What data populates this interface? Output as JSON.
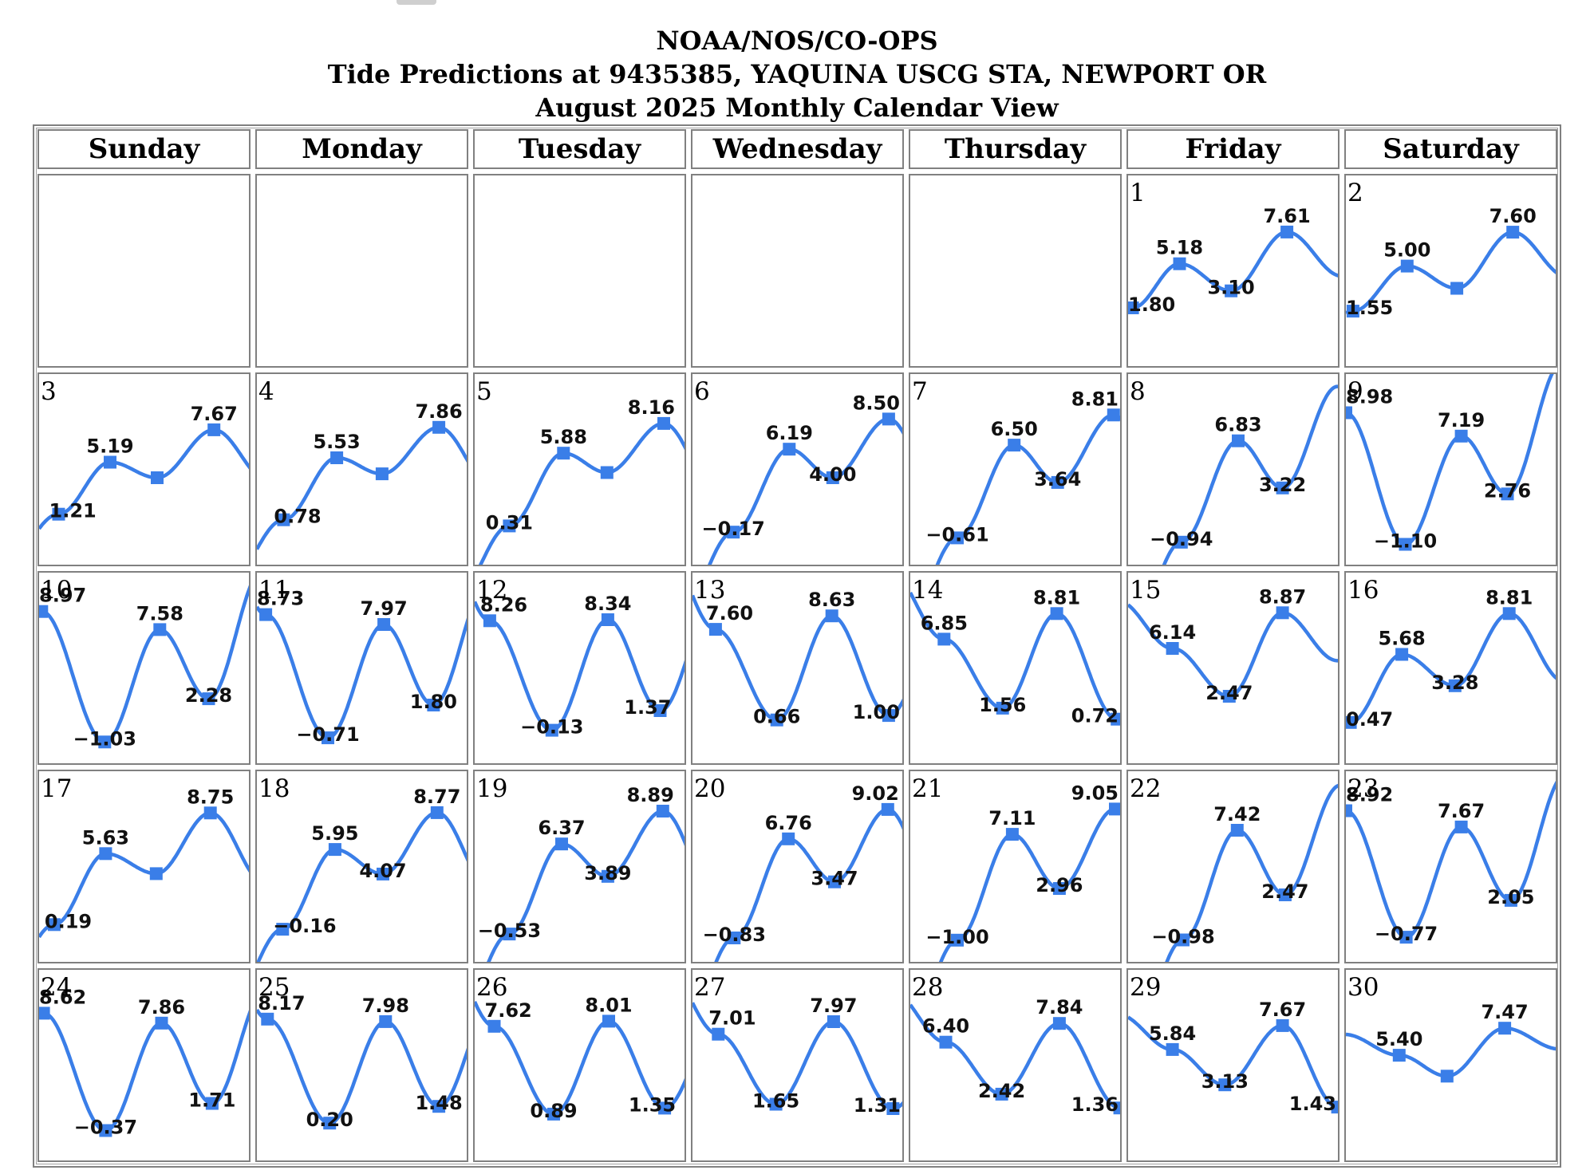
{
  "header": {
    "line1": "NOAA/NOS/CO-OPS",
    "line2": "Tide Predictions at 9435385, YAQUINA USCG STA, NEWPORT OR",
    "line3": "August 2025 Monthly Calendar View"
  },
  "weekdays": [
    "Sunday",
    "Monday",
    "Tuesday",
    "Wednesday",
    "Thursday",
    "Friday",
    "Saturday"
  ],
  "colors": {
    "curve": "#3a7ee8",
    "marker": "#3a7ee8",
    "border": "#808080",
    "text": "#000000"
  },
  "chart_data": {
    "type": "line",
    "title": "Tide Predictions at 9435385, YAQUINA USCG STA, NEWPORT OR",
    "subtitle": "August 2025 Monthly Calendar View",
    "ylim": [
      -1.5,
      9.5
    ],
    "leading_blank_days": 5,
    "days": [
      {
        "day": "1",
        "tides": [
          {
            "t": 0.5,
            "v": 1.8,
            "label": "1.80"
          },
          {
            "t": 5.8,
            "v": 5.18,
            "label": "5.18"
          },
          {
            "t": 11.6,
            "v": 3.1,
            "label": "3.10"
          },
          {
            "t": 17.9,
            "v": 7.61,
            "label": "7.61"
          }
        ]
      },
      {
        "day": "2",
        "tides": [
          {
            "t": 0.8,
            "v": 1.55,
            "label": "1.55"
          },
          {
            "t": 6.9,
            "v": 5.0,
            "label": "5.00"
          },
          {
            "t": 12.5,
            "v": 3.3,
            "label": ""
          },
          {
            "t": 18.8,
            "v": 7.6,
            "label": "7.60"
          }
        ]
      },
      {
        "day": "3",
        "tides": [
          {
            "t": 2.2,
            "v": 1.21,
            "label": "1.21"
          },
          {
            "t": 8.0,
            "v": 5.19,
            "label": "5.19"
          },
          {
            "t": 13.3,
            "v": 4.0,
            "label": ""
          },
          {
            "t": 19.7,
            "v": 7.67,
            "label": "7.67"
          }
        ]
      },
      {
        "day": "4",
        "tides": [
          {
            "t": 3.0,
            "v": 0.78,
            "label": "0.78"
          },
          {
            "t": 9.0,
            "v": 5.53,
            "label": "5.53"
          },
          {
            "t": 14.1,
            "v": 4.3,
            "label": ""
          },
          {
            "t": 20.5,
            "v": 7.86,
            "label": "7.86"
          }
        ]
      },
      {
        "day": "5",
        "tides": [
          {
            "t": 3.9,
            "v": 0.31,
            "label": "0.31"
          },
          {
            "t": 10.0,
            "v": 5.88,
            "label": "5.88"
          },
          {
            "t": 14.9,
            "v": 4.4,
            "label": ""
          },
          {
            "t": 21.3,
            "v": 8.16,
            "label": "8.16"
          }
        ]
      },
      {
        "day": "6",
        "tides": [
          {
            "t": 4.6,
            "v": -0.17,
            "label": "−0.17"
          },
          {
            "t": 10.9,
            "v": 6.19,
            "label": "6.19"
          },
          {
            "t": 15.8,
            "v": 4.0,
            "label": "4.00"
          },
          {
            "t": 22.1,
            "v": 8.5,
            "label": "8.50"
          }
        ]
      },
      {
        "day": "7",
        "tides": [
          {
            "t": 5.3,
            "v": -0.61,
            "label": "−0.61"
          },
          {
            "t": 11.7,
            "v": 6.5,
            "label": "6.50"
          },
          {
            "t": 16.6,
            "v": 3.64,
            "label": "3.64"
          },
          {
            "t": 22.9,
            "v": 8.81,
            "label": "8.81"
          }
        ]
      },
      {
        "day": "8",
        "tides": [
          {
            "t": 6.0,
            "v": -0.94,
            "label": "−0.94"
          },
          {
            "t": 12.4,
            "v": 6.83,
            "label": "6.83"
          },
          {
            "t": 17.4,
            "v": 3.22,
            "label": "3.22"
          }
        ]
      },
      {
        "day": "9",
        "tides": [
          {
            "t": 0.0,
            "v": 8.98,
            "label": "8.98"
          },
          {
            "t": 6.7,
            "v": -1.1,
            "label": "−1.10"
          },
          {
            "t": 13.0,
            "v": 7.19,
            "label": "7.19"
          },
          {
            "t": 18.2,
            "v": 2.76,
            "label": "2.76"
          }
        ]
      },
      {
        "day": "10",
        "tides": [
          {
            "t": 0.3,
            "v": 8.97,
            "label": "8.97"
          },
          {
            "t": 7.4,
            "v": -1.03,
            "label": "−1.03"
          },
          {
            "t": 13.6,
            "v": 7.58,
            "label": "7.58"
          },
          {
            "t": 19.1,
            "v": 2.28,
            "label": "2.28"
          }
        ]
      },
      {
        "day": "11",
        "tides": [
          {
            "t": 1.0,
            "v": 8.73,
            "label": "8.73"
          },
          {
            "t": 8.0,
            "v": -0.71,
            "label": "−0.71"
          },
          {
            "t": 14.3,
            "v": 7.97,
            "label": "7.97"
          },
          {
            "t": 19.9,
            "v": 1.8,
            "label": "1.80"
          }
        ]
      },
      {
        "day": "12",
        "tides": [
          {
            "t": 1.7,
            "v": 8.26,
            "label": "8.26"
          },
          {
            "t": 8.7,
            "v": -0.13,
            "label": "−0.13"
          },
          {
            "t": 15.0,
            "v": 8.34,
            "label": "8.34"
          },
          {
            "t": 20.9,
            "v": 1.37,
            "label": "1.37"
          }
        ]
      },
      {
        "day": "13",
        "tides": [
          {
            "t": 2.6,
            "v": 7.6,
            "label": "7.60"
          },
          {
            "t": 9.5,
            "v": 0.66,
            "label": "0.66"
          },
          {
            "t": 15.7,
            "v": 8.63,
            "label": "8.63"
          },
          {
            "t": 22.1,
            "v": 1.0,
            "label": "1.00"
          }
        ]
      },
      {
        "day": "14",
        "tides": [
          {
            "t": 3.8,
            "v": 6.85,
            "label": "6.85"
          },
          {
            "t": 10.4,
            "v": 1.56,
            "label": "1.56"
          },
          {
            "t": 16.5,
            "v": 8.81,
            "label": "8.81"
          },
          {
            "t": 23.3,
            "v": 0.72,
            "label": "0.72"
          }
        ]
      },
      {
        "day": "15",
        "tides": [
          {
            "t": 5.0,
            "v": 6.14,
            "label": "6.14"
          },
          {
            "t": 11.4,
            "v": 2.47,
            "label": "2.47"
          },
          {
            "t": 17.4,
            "v": 8.87,
            "label": "8.87"
          }
        ]
      },
      {
        "day": "16",
        "tides": [
          {
            "t": 0.5,
            "v": 0.47,
            "label": "0.47"
          },
          {
            "t": 6.3,
            "v": 5.68,
            "label": "5.68"
          },
          {
            "t": 12.3,
            "v": 3.28,
            "label": "3.28"
          },
          {
            "t": 18.4,
            "v": 8.81,
            "label": "8.81"
          }
        ]
      },
      {
        "day": "17",
        "tides": [
          {
            "t": 1.7,
            "v": 0.19,
            "label": "0.19"
          },
          {
            "t": 7.5,
            "v": 5.63,
            "label": "5.63"
          },
          {
            "t": 13.2,
            "v": 4.1,
            "label": ""
          },
          {
            "t": 19.3,
            "v": 8.75,
            "label": "8.75"
          }
        ]
      },
      {
        "day": "18",
        "tides": [
          {
            "t": 2.9,
            "v": -0.16,
            "label": "−0.16"
          },
          {
            "t": 8.8,
            "v": 5.95,
            "label": "5.95"
          },
          {
            "t": 14.2,
            "v": 4.07,
            "label": "4.07"
          },
          {
            "t": 20.3,
            "v": 8.77,
            "label": "8.77"
          }
        ]
      },
      {
        "day": "19",
        "tides": [
          {
            "t": 3.9,
            "v": -0.53,
            "label": "−0.53"
          },
          {
            "t": 9.8,
            "v": 6.37,
            "label": "6.37"
          },
          {
            "t": 15.0,
            "v": 3.89,
            "label": "3.89"
          },
          {
            "t": 21.2,
            "v": 8.89,
            "label": "8.89"
          }
        ]
      },
      {
        "day": "20",
        "tides": [
          {
            "t": 4.7,
            "v": -0.83,
            "label": "−0.83"
          },
          {
            "t": 10.8,
            "v": 6.76,
            "label": "6.76"
          },
          {
            "t": 16.0,
            "v": 3.47,
            "label": "3.47"
          },
          {
            "t": 22.0,
            "v": 9.02,
            "label": "9.02"
          }
        ]
      },
      {
        "day": "21",
        "tides": [
          {
            "t": 5.3,
            "v": -1.0,
            "label": "−1.00"
          },
          {
            "t": 11.5,
            "v": 7.11,
            "label": "7.11"
          },
          {
            "t": 16.8,
            "v": 2.96,
            "label": "2.96"
          },
          {
            "t": 23.1,
            "v": 9.05,
            "label": "9.05"
          }
        ]
      },
      {
        "day": "22",
        "tides": [
          {
            "t": 6.2,
            "v": -0.98,
            "label": "−0.98"
          },
          {
            "t": 12.3,
            "v": 7.42,
            "label": "7.42"
          },
          {
            "t": 17.7,
            "v": 2.47,
            "label": "2.47"
          }
        ]
      },
      {
        "day": "23",
        "tides": [
          {
            "t": 0.0,
            "v": 8.92,
            "label": "8.92"
          },
          {
            "t": 6.8,
            "v": -0.77,
            "label": "−0.77"
          },
          {
            "t": 13.0,
            "v": 7.67,
            "label": "7.67"
          },
          {
            "t": 18.6,
            "v": 2.05,
            "label": "2.05"
          }
        ]
      },
      {
        "day": "24",
        "tides": [
          {
            "t": 0.5,
            "v": 8.62,
            "label": "8.62"
          },
          {
            "t": 7.5,
            "v": -0.37,
            "label": "−0.37"
          },
          {
            "t": 13.8,
            "v": 7.86,
            "label": "7.86"
          },
          {
            "t": 19.5,
            "v": 1.71,
            "label": "1.71"
          }
        ]
      },
      {
        "day": "25",
        "tides": [
          {
            "t": 1.2,
            "v": 8.17,
            "label": "8.17"
          },
          {
            "t": 8.2,
            "v": 0.2,
            "label": "0.20"
          },
          {
            "t": 14.5,
            "v": 7.98,
            "label": "7.98"
          },
          {
            "t": 20.5,
            "v": 1.48,
            "label": "1.48"
          }
        ]
      },
      {
        "day": "26",
        "tides": [
          {
            "t": 2.2,
            "v": 7.62,
            "label": "7.62"
          },
          {
            "t": 8.9,
            "v": 0.89,
            "label": "0.89"
          },
          {
            "t": 15.1,
            "v": 8.01,
            "label": "8.01"
          },
          {
            "t": 21.4,
            "v": 1.35,
            "label": "1.35"
          }
        ]
      },
      {
        "day": "27",
        "tides": [
          {
            "t": 2.9,
            "v": 7.01,
            "label": "7.01"
          },
          {
            "t": 9.4,
            "v": 1.65,
            "label": "1.65"
          },
          {
            "t": 15.9,
            "v": 7.97,
            "label": "7.97"
          },
          {
            "t": 22.6,
            "v": 1.31,
            "label": "1.31"
          }
        ]
      },
      {
        "day": "28",
        "tides": [
          {
            "t": 4.0,
            "v": 6.4,
            "label": "6.40"
          },
          {
            "t": 10.3,
            "v": 2.42,
            "label": "2.42"
          },
          {
            "t": 16.8,
            "v": 7.84,
            "label": "7.84"
          },
          {
            "t": 23.6,
            "v": 1.36,
            "label": "1.36"
          }
        ]
      },
      {
        "day": "29",
        "tides": [
          {
            "t": 5.0,
            "v": 5.84,
            "label": "5.84"
          },
          {
            "t": 10.9,
            "v": 3.13,
            "label": "3.13"
          },
          {
            "t": 17.4,
            "v": 7.67,
            "label": "7.67"
          },
          {
            "t": 23.6,
            "v": 1.43,
            "label": "1.43"
          }
        ]
      },
      {
        "day": "30",
        "tides": [
          {
            "t": 6.0,
            "v": 5.4,
            "label": "5.40"
          },
          {
            "t": 11.4,
            "v": 3.8,
            "label": ""
          },
          {
            "t": 17.9,
            "v": 7.47,
            "label": "7.47"
          }
        ]
      }
    ]
  }
}
